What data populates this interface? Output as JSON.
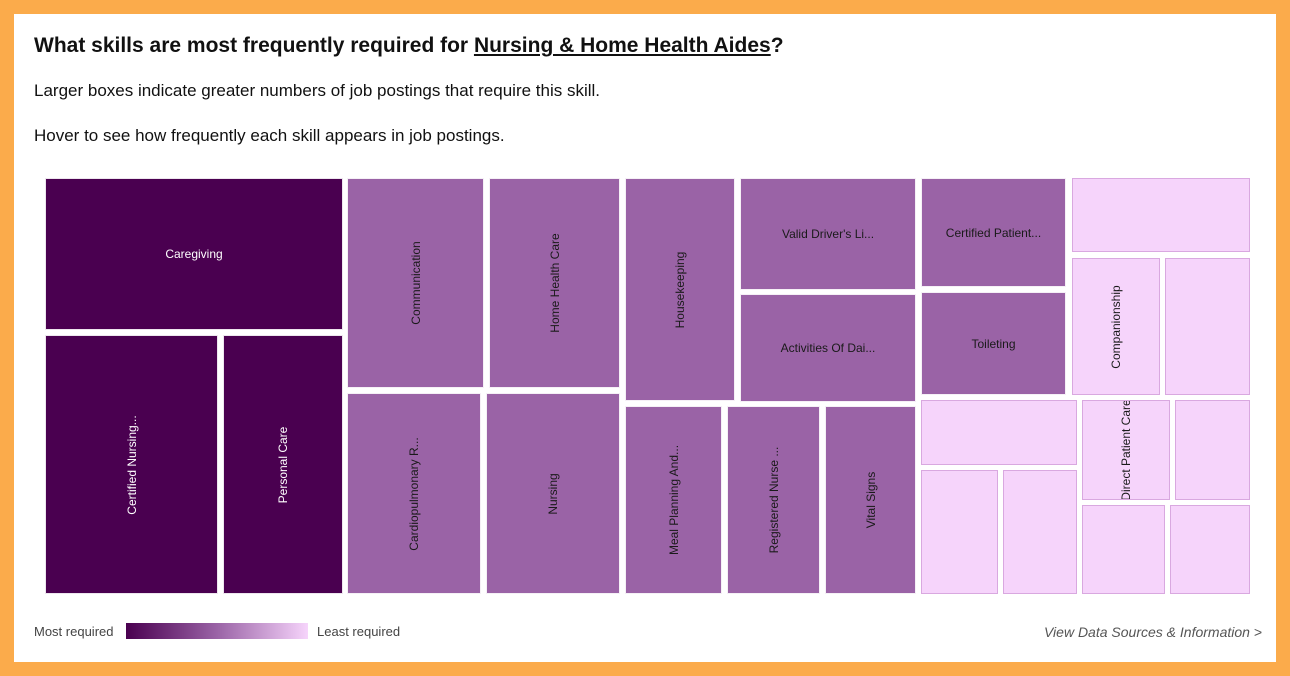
{
  "header": {
    "title_prefix": "What skills are most frequently required for ",
    "title_link": "Nursing & Home Health Aides",
    "title_suffix": "?",
    "description_1": "Larger boxes indicate greater numbers of job postings that require this skill.",
    "description_2": "Hover to see how frequently each skill appears in job postings."
  },
  "legend": {
    "most_label": "Most required",
    "least_label": "Least required"
  },
  "footer": {
    "source_link": "View Data Sources & Information >"
  },
  "colors": {
    "frame": "#fbab4b",
    "tier_1": "#4a0050",
    "tier_2": "#9a63a6",
    "tier_3": "#f6d4fb"
  },
  "chart_data": {
    "type": "treemap",
    "title": "",
    "color_scale": [
      "#4a0050",
      "#9a63a6",
      "#f6d4fb"
    ],
    "tiles": [
      {
        "label": "Caregiving",
        "tier": 1
      },
      {
        "label": "Certified Nursing...",
        "tier": 1
      },
      {
        "label": "Personal Care",
        "tier": 1
      },
      {
        "label": "Communication",
        "tier": 2
      },
      {
        "label": "Home Health Care",
        "tier": 2
      },
      {
        "label": "Cardiopulmonary R...",
        "tier": 2
      },
      {
        "label": "Nursing",
        "tier": 2
      },
      {
        "label": "Housekeeping",
        "tier": 2
      },
      {
        "label": "Valid Driver's Li...",
        "tier": 2
      },
      {
        "label": "Activities Of Dai...",
        "tier": 2
      },
      {
        "label": "Meal Planning And...",
        "tier": 2
      },
      {
        "label": "Registered Nurse ...",
        "tier": 2
      },
      {
        "label": "Vital Signs",
        "tier": 2
      },
      {
        "label": "Certified Patient...",
        "tier": 2
      },
      {
        "label": "Toileting",
        "tier": 2
      },
      {
        "label": "",
        "tier": 3
      },
      {
        "label": "Companionship",
        "tier": 3
      },
      {
        "label": "",
        "tier": 3
      },
      {
        "label": "",
        "tier": 3
      },
      {
        "label": "Direct Patient Care",
        "tier": 3
      },
      {
        "label": "",
        "tier": 3
      },
      {
        "label": "",
        "tier": 3
      },
      {
        "label": "",
        "tier": 3
      },
      {
        "label": "",
        "tier": 3
      },
      {
        "label": "",
        "tier": 3
      }
    ]
  }
}
